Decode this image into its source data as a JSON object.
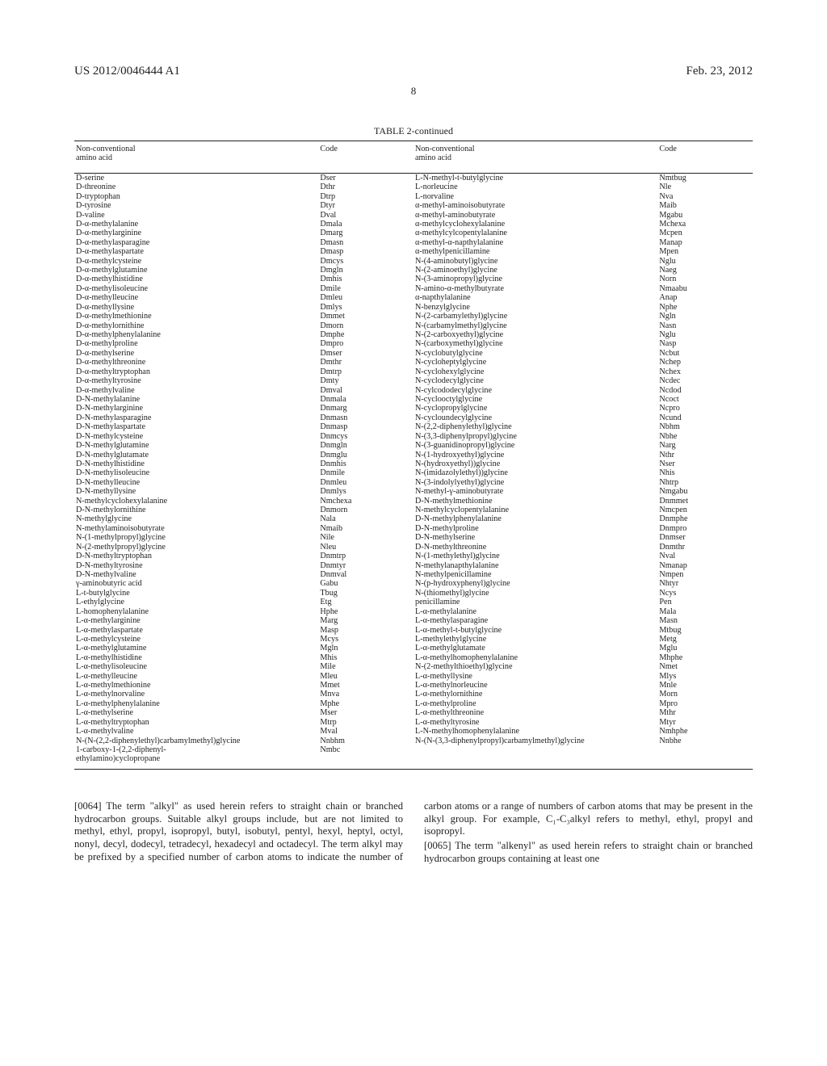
{
  "header": {
    "left": "US 2012/0046444 A1",
    "right": "Feb. 23, 2012",
    "pageNum": "8"
  },
  "tableTitle": "TABLE 2-continued",
  "tableHeaders": {
    "h1a": "Non-conventional",
    "h1b": "amino acid",
    "h2": "Code",
    "h3a": "Non-conventional",
    "h3b": "amino acid",
    "h4": "Code"
  },
  "rows": [
    [
      "D-serine",
      "Dser",
      "L-N-methyl-t-butylglycine",
      "Nmtbug"
    ],
    [
      "D-threonine",
      "Dthr",
      "L-norleucine",
      "Nle"
    ],
    [
      "D-tryptophan",
      "Dtrp",
      "L-norvaline",
      "Nva"
    ],
    [
      "D-tyrosine",
      "Dtyr",
      "α-methyl-aminoisobutyrate",
      "Maib"
    ],
    [
      "D-valine",
      "Dval",
      "α-methyl-aminobutyrate",
      "Mgabu"
    ],
    [
      "D-α-methylalanine",
      "Dmala",
      "α-methylcyclohexylalanine",
      "Mchexa"
    ],
    [
      "D-α-methylarginine",
      "Dmarg",
      "α-methylcylcopentylalanine",
      "Mcpen"
    ],
    [
      "D-α-methylasparagine",
      "Dmasn",
      "α-methyl-α-napthylalanine",
      "Manap"
    ],
    [
      "D-α-methylaspartate",
      "Dmasp",
      "α-methylpenicillamine",
      "Mpen"
    ],
    [
      "D-α-methylcysteine",
      "Dmcys",
      "N-(4-aminobutyl)glycine",
      "Nglu"
    ],
    [
      "D-α-methylglutamine",
      "Dmgln",
      "N-(2-aminoethyl)glycine",
      "Naeg"
    ],
    [
      "D-α-methylhistidine",
      "Dmhis",
      "N-(3-aminopropyl)glycine",
      "Norn"
    ],
    [
      "D-α-methylisoleucine",
      "Dmile",
      "N-amino-α-methylbutyrate",
      "Nmaabu"
    ],
    [
      "D-α-methylleucine",
      "Dmleu",
      "α-napthylalanine",
      "Anap"
    ],
    [
      "D-α-methyllysine",
      "Dmlys",
      "N-benzylglycine",
      "Nphe"
    ],
    [
      "D-α-methylmethionine",
      "Dmmet",
      "N-(2-carbamylethyl)glycine",
      "Ngln"
    ],
    [
      "D-α-methylornithine",
      "Dmorn",
      "N-(carbamylmethyl)glycine",
      "Nasn"
    ],
    [
      "D-α-methylphenylalanine",
      "Dmphe",
      "N-(2-carboxyethyl)glycine",
      "Nglu"
    ],
    [
      "D-α-methylproline",
      "Dmpro",
      "N-(carboxymethyl)glycine",
      "Nasp"
    ],
    [
      "D-α-methylserine",
      "Dmser",
      "N-cyclobutylglycine",
      "Ncbut"
    ],
    [
      "D-α-methylthreonine",
      "Dmthr",
      "N-cycloheptylglycine",
      "Nchep"
    ],
    [
      "D-α-methyltryptophan",
      "Dmtrp",
      "N-cyclohexylglycine",
      "Nchex"
    ],
    [
      "D-α-methyltyrosine",
      "Dmty",
      "N-cyclodecylglycine",
      "Ncdec"
    ],
    [
      "D-α-methylvaline",
      "Dmval",
      "N-cylcododecylglycine",
      "Ncdod"
    ],
    [
      "D-N-methylalanine",
      "Dnmala",
      "N-cyclooctylglycine",
      "Ncoct"
    ],
    [
      "D-N-methylarginine",
      "Dnmarg",
      "N-cyclopropylglycine",
      "Ncpro"
    ],
    [
      "D-N-methylasparagine",
      "Dnmasn",
      "N-cycloundecylglycine",
      "Ncund"
    ],
    [
      "D-N-methylaspartate",
      "Dnmasp",
      "N-(2,2-diphenylethyl)glycine",
      "Nbhm"
    ],
    [
      "D-N-methylcysteine",
      "Dnmcys",
      "N-(3,3-diphenylpropyl)glycine",
      "Nbhe"
    ],
    [
      "D-N-methylglutamine",
      "Dnmgln",
      "N-(3-guanidinopropyl)glycine",
      "Narg"
    ],
    [
      "D-N-methylglutamate",
      "Dnmglu",
      "N-(1-hydroxyethyl)glycine",
      "Nthr"
    ],
    [
      "D-N-methylhistidine",
      "Dnmhis",
      "N-(hydroxyethyl))glycine",
      "Nser"
    ],
    [
      "D-N-methylisoleucine",
      "Dnmile",
      "N-(imidazolylethyl))glycine",
      "Nhis"
    ],
    [
      "D-N-methylleucine",
      "Dnmleu",
      "N-(3-indolylyethyl)glycine",
      "Nhtrp"
    ],
    [
      "D-N-methyllysine",
      "Dnmlys",
      "N-methyl-γ-aminobutyrate",
      "Nmgabu"
    ],
    [
      "N-methylcyclohexylalanine",
      "Nmchexa",
      "D-N-methylmethionine",
      "Dnmmet"
    ],
    [
      "D-N-methylornithine",
      "Dnmorn",
      "N-methylcyclopentylalanine",
      "Nmcpen"
    ],
    [
      "N-methylglycine",
      "Nala",
      "D-N-methylphenylalanine",
      "Dnmphe"
    ],
    [
      "N-methylaminoisobutyrate",
      "Nmaib",
      "D-N-methylproline",
      "Dnmpro"
    ],
    [
      "N-(1-methylpropyl)glycine",
      "Nile",
      "D-N-methylserine",
      "Dnmser"
    ],
    [
      "N-(2-methylpropyl)glycine",
      "Nleu",
      "D-N-methylthreonine",
      "Dnmthr"
    ],
    [
      "D-N-methyltryptophan",
      "Dnmtrp",
      "N-(1-methylethyl)glycine",
      "Nval"
    ],
    [
      "D-N-methyltyrosine",
      "Dnmtyr",
      "N-methylanapthylalanine",
      "Nmanap"
    ],
    [
      "D-N-methylvaline",
      "Dnmval",
      "N-methylpenicillamine",
      "Nmpen"
    ],
    [
      "γ-aminobutyric acid",
      "Gabu",
      "N-(p-hydroxyphenyl)glycine",
      "Nhtyr"
    ],
    [
      "L-t-butylglycine",
      "Tbug",
      "N-(thiomethyl)glycine",
      "Ncys"
    ],
    [
      "L-ethylglycine",
      "Etg",
      "penicillamine",
      "Pen"
    ],
    [
      "L-homophenylalanine",
      "Hphe",
      "L-α-methylalanine",
      "Mala"
    ],
    [
      "L-α-methylarginine",
      "Marg",
      "L-α-methylasparagine",
      "Masn"
    ],
    [
      "L-α-methylaspartate",
      "Masp",
      "L-α-methyl-t-butylglycine",
      "Mtbug"
    ],
    [
      "L-α-methylcysteine",
      "Mcys",
      "L-methylethylglycine",
      "Metg"
    ],
    [
      "L-α-methylglutamine",
      "Mgln",
      "L-α-methylglutamate",
      "Mglu"
    ],
    [
      "L-α-methylhistidine",
      "Mhis",
      "L-α-methylhomophenylalanine",
      "Mhphe"
    ],
    [
      "L-α-methylisoleucine",
      "Mile",
      "N-(2-methylthioethyl)glycine",
      "Nmet"
    ],
    [
      "L-α-methylleucine",
      "Mleu",
      "L-α-methyllysine",
      "Mlys"
    ],
    [
      "L-α-methylmethionine",
      "Mmet",
      "L-α-methylnorleucine",
      "Mnle"
    ],
    [
      "L-α-methylnorvaline",
      "Mnva",
      "L-α-methylornithine",
      "Morn"
    ],
    [
      "L-α-methylphenylalanine",
      "Mphe",
      "L-α-methylproline",
      "Mpro"
    ],
    [
      "L-α-methylserine",
      "Mser",
      "L-α-methylthreonine",
      "Mthr"
    ],
    [
      "L-α-methyltryptophan",
      "Mtrp",
      "L-α-methyltyrosine",
      "Mtyr"
    ],
    [
      "L-α-methylvaline",
      "Mval",
      "L-N-methylhomophenylalanine",
      "Nmhphe"
    ],
    [
      "N-(N-(2,2-diphenylethyl)carbamylmethyl)glycine",
      "Nnbhm",
      "N-(N-(3,3-diphenylpropyl)carbamylmethyl)glycine",
      "Nnbhe"
    ],
    [
      "1-carboxy-1-(2,2-diphenyl-",
      "Nmbc",
      "",
      ""
    ],
    [
      "ethylamino)cyclopropane",
      "",
      "",
      ""
    ]
  ],
  "para64num": "[0064]",
  "para64": "   The term \"alkyl\" as used herein refers to straight chain or branched hydrocarbon groups. Suitable alkyl groups include, but are not limited to methyl, ethyl, propyl, isopropyl, butyl, isobutyl, pentyl, hexyl, heptyl, octyl, nonyl, decyl, dodecyl, tetradecyl, hexadecyl and octadecyl. The term alkyl may be prefixed by a specified number of carbon atoms to indicate the number of carbon atoms or a range of numbers of carbon atoms that may be present in the alkyl group. For example, C₁-C₃alkyl refers to methyl, ethyl, propyl and isopropyl.",
  "para65num": "[0065]",
  "para65": "   The term \"alkenyl\" as used herein refers to straight chain or branched hydrocarbon groups containing at least one"
}
